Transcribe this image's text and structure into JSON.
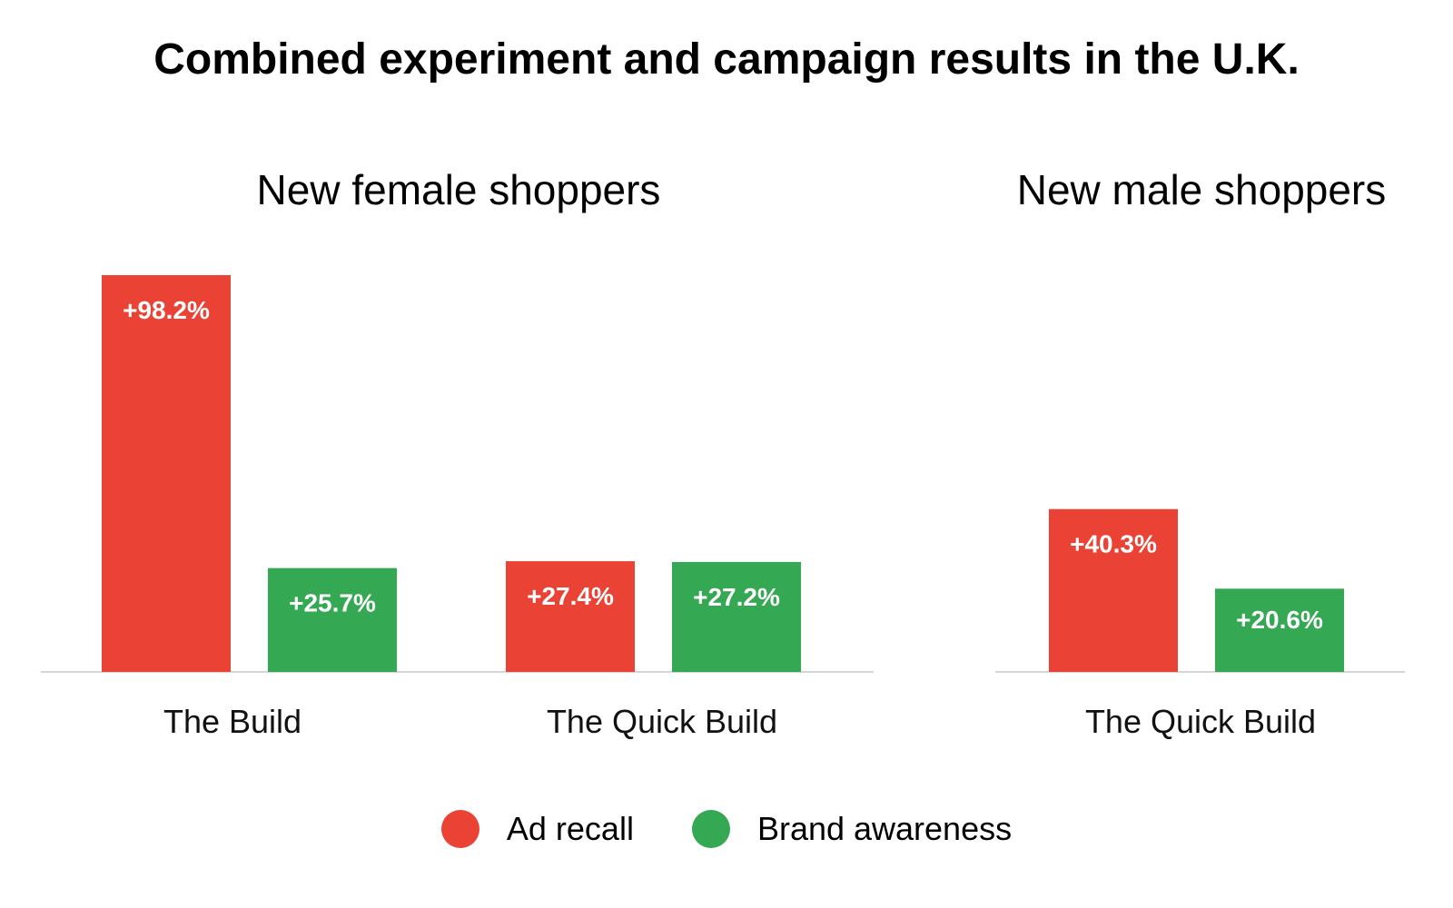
{
  "chart_data": {
    "type": "bar",
    "title": "Combined experiment and campaign results in the U.K.",
    "colors": {
      "ad_recall": "#EA4335",
      "brand_awareness": "#34A853",
      "baseline": "#D6D6D6"
    },
    "legend": {
      "placement": "bottom-center",
      "items": [
        {
          "name": "Ad recall",
          "color": "#EA4335"
        },
        {
          "name": "Brand awareness",
          "color": "#34A853"
        }
      ]
    },
    "grid": false,
    "ylim": [
      0,
      100
    ],
    "panels": [
      {
        "title": "New female shoppers",
        "categories": [
          "The Build",
          "The Quick Build"
        ],
        "series": [
          {
            "name": "Ad recall",
            "values": [
              98.2,
              27.4
            ],
            "labels": [
              "+98.2%",
              "+27.4%"
            ]
          },
          {
            "name": "Brand awareness",
            "values": [
              25.7,
              27.2
            ],
            "labels": [
              "+25.7%",
              "+27.2%"
            ]
          }
        ]
      },
      {
        "title": "New male shoppers",
        "categories": [
          "The Quick Build"
        ],
        "series": [
          {
            "name": "Ad recall",
            "values": [
              40.3
            ],
            "labels": [
              "+40.3%"
            ]
          },
          {
            "name": "Brand awareness",
            "values": [
              20.6
            ],
            "labels": [
              "+20.6%"
            ]
          }
        ]
      }
    ]
  }
}
